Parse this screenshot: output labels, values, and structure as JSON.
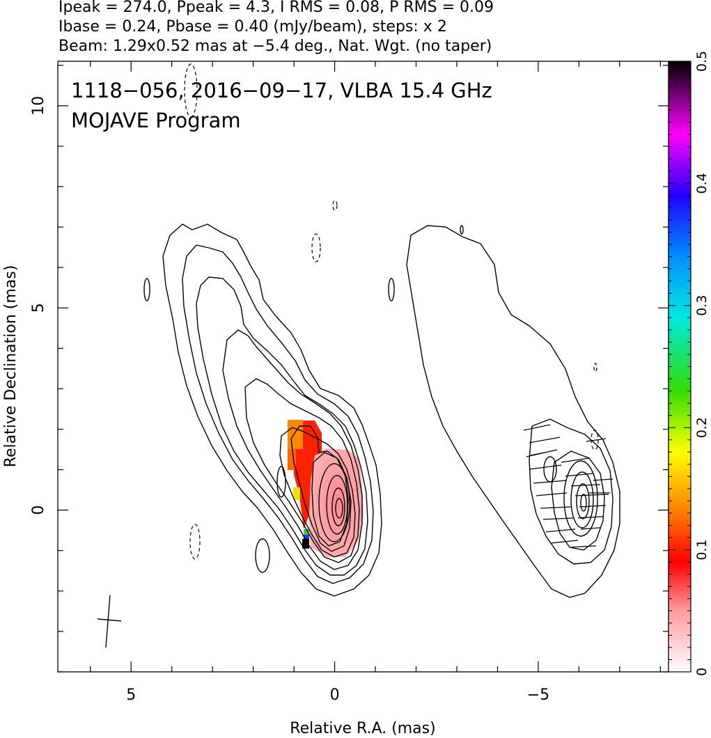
{
  "header": {
    "line1": "Ipeak = 274.0, Ppeak = 4.3, I RMS = 0.08, P RMS = 0.09",
    "line2": "Ibase = 0.24, Pbase = 0.40 (mJy/beam), steps: x 2",
    "line3": "Beam: 1.29x0.52 mas at −5.4 deg., Nat. Wgt. (no taper)"
  },
  "annotation": {
    "line1": "1118−056, 2016−09−17, VLBA 15.4 GHz",
    "line2": "MOJAVE Program"
  },
  "chart_data": {
    "type": "contour",
    "xlabel": "Relative R.A. (mas)",
    "ylabel": "Relative Declination (mas)",
    "xlim": [
      6.8,
      -8.2
    ],
    "ylim": [
      -4.0,
      11.1
    ],
    "x_ticks": [
      5,
      0,
      -5
    ],
    "x_tick_labels": [
      "5",
      "0",
      "−5"
    ],
    "y_ticks": [
      0,
      5,
      10
    ],
    "y_tick_labels": [
      "0",
      "5",
      "10"
    ],
    "core": [
      0,
      0
    ],
    "stokes_i_panel_offset_ra": 0,
    "polarization_panel_offset_ra": -6.0,
    "contour_levels_mJy": [
      0.24,
      0.48,
      0.96,
      1.92,
      3.84,
      7.68,
      15.36,
      30.72,
      61.44,
      122.88,
      245.76
    ],
    "colorbar": {
      "label_side": "right",
      "range": [
        0,
        0.5
      ],
      "ticks": [
        0,
        0.1,
        0.2,
        0.3,
        0.4,
        0.5
      ],
      "tick_labels": [
        "0",
        "0.1",
        "0.2",
        "0.3",
        "0.4",
        "0.5"
      ]
    },
    "fractional_polarization_pixels": [
      {
        "ra": -0.2,
        "dec": 0.3,
        "value": 0.03
      },
      {
        "ra": -0.6,
        "dec": 1.6,
        "value": 0.09
      },
      {
        "ra": -0.8,
        "dec": 0.4,
        "value": 0.18
      },
      {
        "ra": -0.8,
        "dec": -0.7,
        "value": 0.28
      },
      {
        "ra": -0.8,
        "dec": -0.85,
        "value": 0.5
      }
    ],
    "beam": {
      "major_mas": 1.29,
      "minor_mas": 0.52,
      "pa_deg": -5.4,
      "center": [
        5.8,
        -2.75
      ]
    }
  }
}
